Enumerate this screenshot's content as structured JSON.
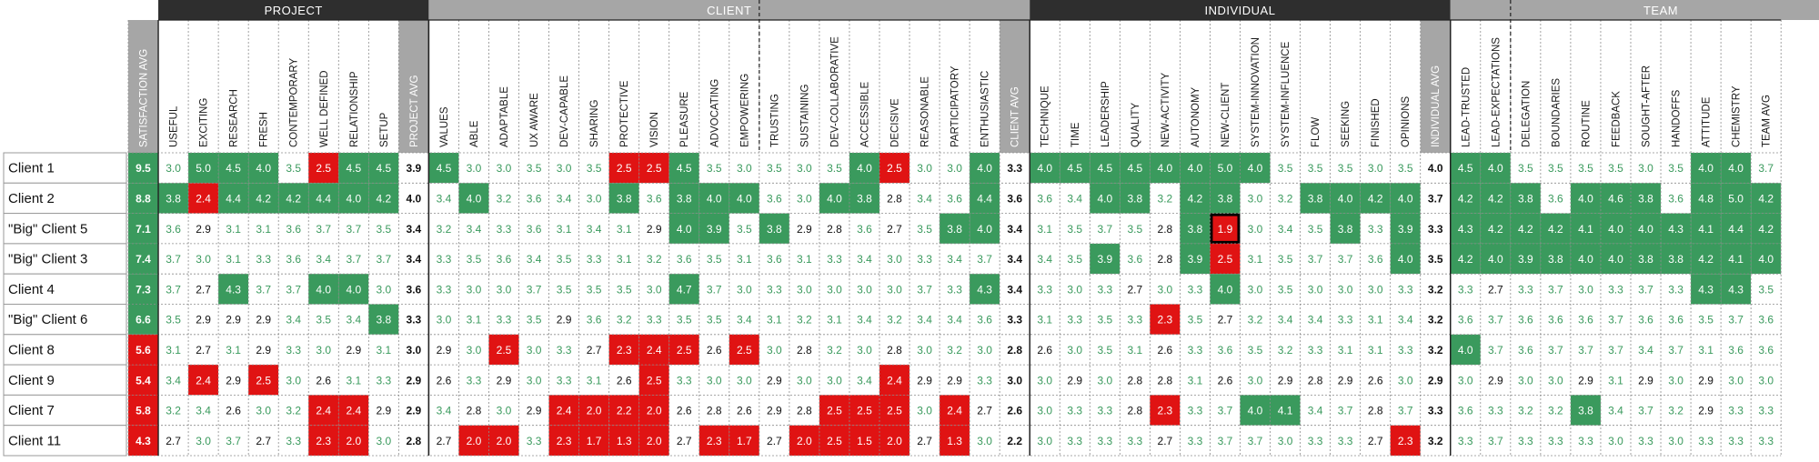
{
  "chart_data": {
    "type": "heatmap",
    "groups": [
      {
        "name": "PROJECT",
        "start": 1,
        "end": 9,
        "style": "dark"
      },
      {
        "name": "CLIENT",
        "start": 10,
        "end": 29,
        "style": "gray"
      },
      {
        "name": "INDIVIDUAL",
        "start": 30,
        "end": 43,
        "style": "dark"
      },
      {
        "name": "TEAM",
        "start": 44,
        "end": 57,
        "style": "gray"
      }
    ],
    "columns": [
      "SATISFACTION AVG",
      "USEFUL",
      "EXCITING",
      "RESEARCH",
      "FRESH",
      "CONTEMPORARY",
      "WELL DEFINED",
      "RELATIONSHIP",
      "SETUP",
      "PROJECT AVG",
      "VALUES",
      "ABLE",
      "ADAPTABLE",
      "UX AWARE",
      "DEV-CAPABLE",
      "SHARING",
      "PROTECTIVE",
      "VISION",
      "PLEASURE",
      "ADVOCATING",
      "EMPOWERING",
      "TRUSTING",
      "SUSTAINING",
      "DEV-COLLABORATIVE",
      "ACCESSIBLE",
      "DECISIVE",
      "REASONABLE",
      "PARTICIPATORY",
      "ENTHUSIASTIC",
      "CLIENT AVG",
      "TECHNIQUE",
      "TIME",
      "LEADERSHIP",
      "QUALITY",
      "NEW-ACTIVITY",
      "AUTONOMY",
      "NEW-CLIENT",
      "SYSTEM-INNOVATION",
      "SYSTEM-INFLUENCE",
      "FLOW",
      "SEEKING",
      "FINISHED",
      "OPINIONS",
      "INDIVIDUAL AVG",
      "LEAD-TRUSTED",
      "LEAD-EXPECTATIONS",
      "DELEGATION",
      "BOUNDARIES",
      "ROUTINE",
      "FEEDBACK",
      "SOUGHT-AFTER",
      "HANDOFFS",
      "ATTITUDE",
      "CHEMISTRY",
      "TEAM AVG"
    ],
    "avg_columns": [
      0,
      9,
      29,
      43,
      55
    ],
    "rows": [
      {
        "name": "Client 1",
        "values": [
          9.5,
          3.0,
          5.0,
          4.5,
          4.0,
          3.5,
          2.5,
          4.5,
          4.5,
          3.9,
          4.5,
          3.0,
          3.0,
          3.5,
          3.0,
          3.5,
          2.5,
          2.5,
          4.5,
          3.5,
          3.0,
          3.5,
          3.0,
          3.5,
          4.0,
          2.5,
          3.0,
          3.0,
          4.0,
          3.3,
          4.0,
          4.5,
          4.5,
          4.5,
          4.0,
          4.0,
          5.0,
          4.0,
          3.5,
          3.5,
          3.5,
          3.0,
          3.5,
          4.0,
          4.5,
          4.0,
          3.5,
          3.5,
          3.5,
          3.5,
          3.0,
          3.5,
          4.0,
          4.0,
          3.7
        ]
      },
      {
        "name": "Client 2",
        "values": [
          8.8,
          3.8,
          2.4,
          4.4,
          4.2,
          4.2,
          4.4,
          4.0,
          4.2,
          4.0,
          3.4,
          4.0,
          3.2,
          3.6,
          3.4,
          3.0,
          3.8,
          3.6,
          3.8,
          4.0,
          4.0,
          3.6,
          3.0,
          4.0,
          3.8,
          2.8,
          3.4,
          3.6,
          4.4,
          3.6,
          3.6,
          3.4,
          4.0,
          3.8,
          3.2,
          4.2,
          3.8,
          3.0,
          3.2,
          3.8,
          4.0,
          4.2,
          4.0,
          3.7,
          4.2,
          4.2,
          3.8,
          3.6,
          4.0,
          4.6,
          3.8,
          3.6,
          4.8,
          5.0,
          4.2
        ]
      },
      {
        "name": "\"Big\" Client 5",
        "values": [
          7.1,
          3.6,
          2.9,
          3.1,
          3.1,
          3.6,
          3.7,
          3.7,
          3.5,
          3.4,
          3.2,
          3.4,
          3.3,
          3.6,
          3.1,
          3.4,
          3.1,
          2.9,
          4.0,
          3.9,
          3.5,
          3.8,
          2.9,
          2.8,
          3.6,
          2.7,
          3.5,
          3.8,
          4.0,
          3.4,
          3.1,
          3.5,
          3.7,
          3.5,
          2.8,
          3.8,
          1.9,
          3.0,
          3.4,
          3.5,
          3.8,
          3.3,
          3.9,
          3.3,
          4.3,
          4.2,
          4.2,
          4.2,
          4.1,
          4.0,
          4.0,
          4.3,
          4.1,
          4.4,
          4.2
        ]
      },
      {
        "name": "\"Big\" Client 3",
        "values": [
          7.4,
          3.7,
          3.0,
          3.1,
          3.3,
          3.6,
          3.4,
          3.7,
          3.7,
          3.4,
          3.3,
          3.5,
          3.6,
          3.4,
          3.5,
          3.3,
          3.1,
          3.2,
          3.6,
          3.5,
          3.1,
          3.6,
          3.1,
          3.3,
          3.4,
          3.0,
          3.3,
          3.4,
          3.7,
          3.4,
          3.4,
          3.5,
          3.9,
          3.6,
          2.8,
          3.9,
          2.5,
          3.1,
          3.5,
          3.7,
          3.7,
          3.6,
          4.0,
          3.5,
          4.2,
          4.0,
          3.9,
          3.8,
          4.0,
          4.0,
          3.8,
          3.8,
          4.2,
          4.1,
          4.0
        ]
      },
      {
        "name": "Client 4",
        "values": [
          7.3,
          3.7,
          2.7,
          4.3,
          3.7,
          3.7,
          4.0,
          4.0,
          3.0,
          3.6,
          3.3,
          3.0,
          3.0,
          3.7,
          3.5,
          3.5,
          3.5,
          3.0,
          4.7,
          3.7,
          3.0,
          3.3,
          3.0,
          3.0,
          3.0,
          3.0,
          3.7,
          3.3,
          4.3,
          3.4,
          3.3,
          3.0,
          3.3,
          2.7,
          3.0,
          3.3,
          4.0,
          3.0,
          3.5,
          3.0,
          3.0,
          3.0,
          3.3,
          3.2,
          3.3,
          2.7,
          3.3,
          3.7,
          3.0,
          3.3,
          3.7,
          3.3,
          4.3,
          4.3,
          3.5
        ]
      },
      {
        "name": "\"Big\" Client 6",
        "values": [
          6.6,
          3.5,
          2.9,
          2.9,
          2.9,
          3.4,
          3.5,
          3.4,
          3.8,
          3.3,
          3.0,
          3.1,
          3.3,
          3.5,
          2.9,
          3.6,
          3.2,
          3.3,
          3.5,
          3.5,
          3.4,
          3.1,
          3.2,
          3.1,
          3.4,
          3.2,
          3.4,
          3.4,
          3.6,
          3.3,
          3.1,
          3.3,
          3.5,
          3.3,
          2.3,
          3.5,
          2.7,
          3.2,
          3.4,
          3.4,
          3.3,
          3.1,
          3.4,
          3.2,
          3.6,
          3.7,
          3.6,
          3.6,
          3.6,
          3.7,
          3.6,
          3.6,
          3.5,
          3.7,
          3.6
        ]
      },
      {
        "name": "Client 8",
        "values": [
          5.6,
          3.1,
          2.7,
          3.1,
          2.9,
          3.3,
          3.0,
          2.9,
          3.1,
          3.0,
          2.9,
          3.0,
          2.5,
          3.0,
          3.3,
          2.7,
          2.3,
          2.4,
          2.5,
          2.6,
          2.5,
          3.0,
          2.8,
          3.2,
          3.0,
          2.8,
          3.0,
          3.2,
          3.0,
          2.8,
          2.6,
          3.0,
          3.5,
          3.1,
          2.6,
          3.3,
          3.6,
          3.5,
          3.2,
          3.3,
          3.1,
          3.1,
          3.3,
          3.2,
          4.0,
          3.7,
          3.6,
          3.7,
          3.7,
          3.7,
          3.4,
          3.7,
          3.1,
          3.6,
          3.6
        ]
      },
      {
        "name": "Client 9",
        "values": [
          5.4,
          3.4,
          2.4,
          2.9,
          2.5,
          3.0,
          2.6,
          3.1,
          3.3,
          2.9,
          2.6,
          3.3,
          2.9,
          3.0,
          3.3,
          3.1,
          2.6,
          2.5,
          3.3,
          3.0,
          3.0,
          2.9,
          3.0,
          3.0,
          3.4,
          2.4,
          2.9,
          2.9,
          3.3,
          3.0,
          3.0,
          2.9,
          3.0,
          2.8,
          2.8,
          3.1,
          2.6,
          3.0,
          2.9,
          2.8,
          2.9,
          2.6,
          3.0,
          2.9,
          3.0,
          2.9,
          3.0,
          3.0,
          2.9,
          3.1,
          2.9,
          3.0,
          2.9,
          3.0,
          3.0
        ]
      },
      {
        "name": "Client 7",
        "values": [
          5.8,
          3.2,
          3.4,
          2.6,
          3.0,
          3.2,
          2.4,
          2.4,
          2.9,
          2.9,
          3.4,
          2.8,
          3.0,
          2.9,
          2.4,
          2.0,
          2.2,
          2.0,
          2.6,
          2.8,
          2.6,
          2.9,
          2.8,
          2.5,
          2.5,
          2.5,
          3.0,
          2.4,
          2.7,
          2.6,
          3.0,
          3.3,
          3.3,
          2.8,
          2.3,
          3.3,
          3.7,
          4.0,
          4.1,
          3.4,
          3.7,
          2.8,
          3.7,
          3.3,
          3.6,
          3.3,
          3.2,
          3.2,
          3.8,
          3.4,
          3.7,
          3.2,
          2.9,
          3.3,
          3.3
        ]
      },
      {
        "name": "Client 11",
        "values": [
          4.3,
          2.7,
          3.0,
          3.7,
          2.7,
          3.3,
          2.3,
          2.0,
          3.0,
          2.8,
          2.7,
          2.0,
          2.0,
          3.3,
          2.3,
          1.7,
          1.3,
          2.0,
          2.7,
          2.3,
          1.7,
          2.7,
          2.0,
          2.5,
          1.5,
          2.0,
          2.7,
          1.3,
          3.0,
          2.2,
          3.0,
          3.3,
          3.3,
          3.3,
          2.7,
          3.3,
          3.7,
          3.7,
          3.0,
          3.3,
          3.3,
          2.7,
          2.3,
          3.2,
          3.3,
          3.7,
          3.3,
          3.3,
          3.3,
          3.0,
          3.3,
          3.0,
          3.3,
          3.3,
          3.3
        ]
      }
    ],
    "cell_status": [
      "gwgggrggb bggwwwrrgwggwgrwwgb gggggggggwwwwb ggwwwwwwggb",
      "ggrggggggb wgwwggwggggwgggwggb wwggwggggggggb ggggggggggb",
      "gwwwwwwwwb wwwwwwwwgggwgwwwgggb wwwwwwkwwwgwgb gggggggggggb",
      "gwwwwwwwwb wwwwwwwwwwwwwwwwwwb wwgwwgwwwwwwgb ggggggggggggb",
      "gwgwwggwb wwwwwwwwgwwwwwwwgb wwwwwwwwwwwwwb wwwwwwwwggb",
      "gwwwwwwgb wwwwwwwwwwwwwwwwwwb wwwwrwwwwwwwwb wwwwwwwwwwb",
      "rwwwwwwwwb wwrwwwrrrwrwwwwwwwb wwwwwwwwwwwwwb gwwwwwwwwwb",
      "rwrwrwwwwb wwwwwwwrwwwwwwrwwwb wwwwwwwwwwwwwb wwwwwwwwwwb",
      "rwwwwwrrwb wwwwrrrrwwwwrrrwrwb wwwwrwwggwwwwb wwwwgwwwwwb",
      "rwwwwwrrwb wrrwrrrrwrrwrrrrwrwb wwwwwwwwwwwrwb wwwwwwwwwwb"
    ],
    "divider_after_columns": [
      20,
      45
    ]
  }
}
